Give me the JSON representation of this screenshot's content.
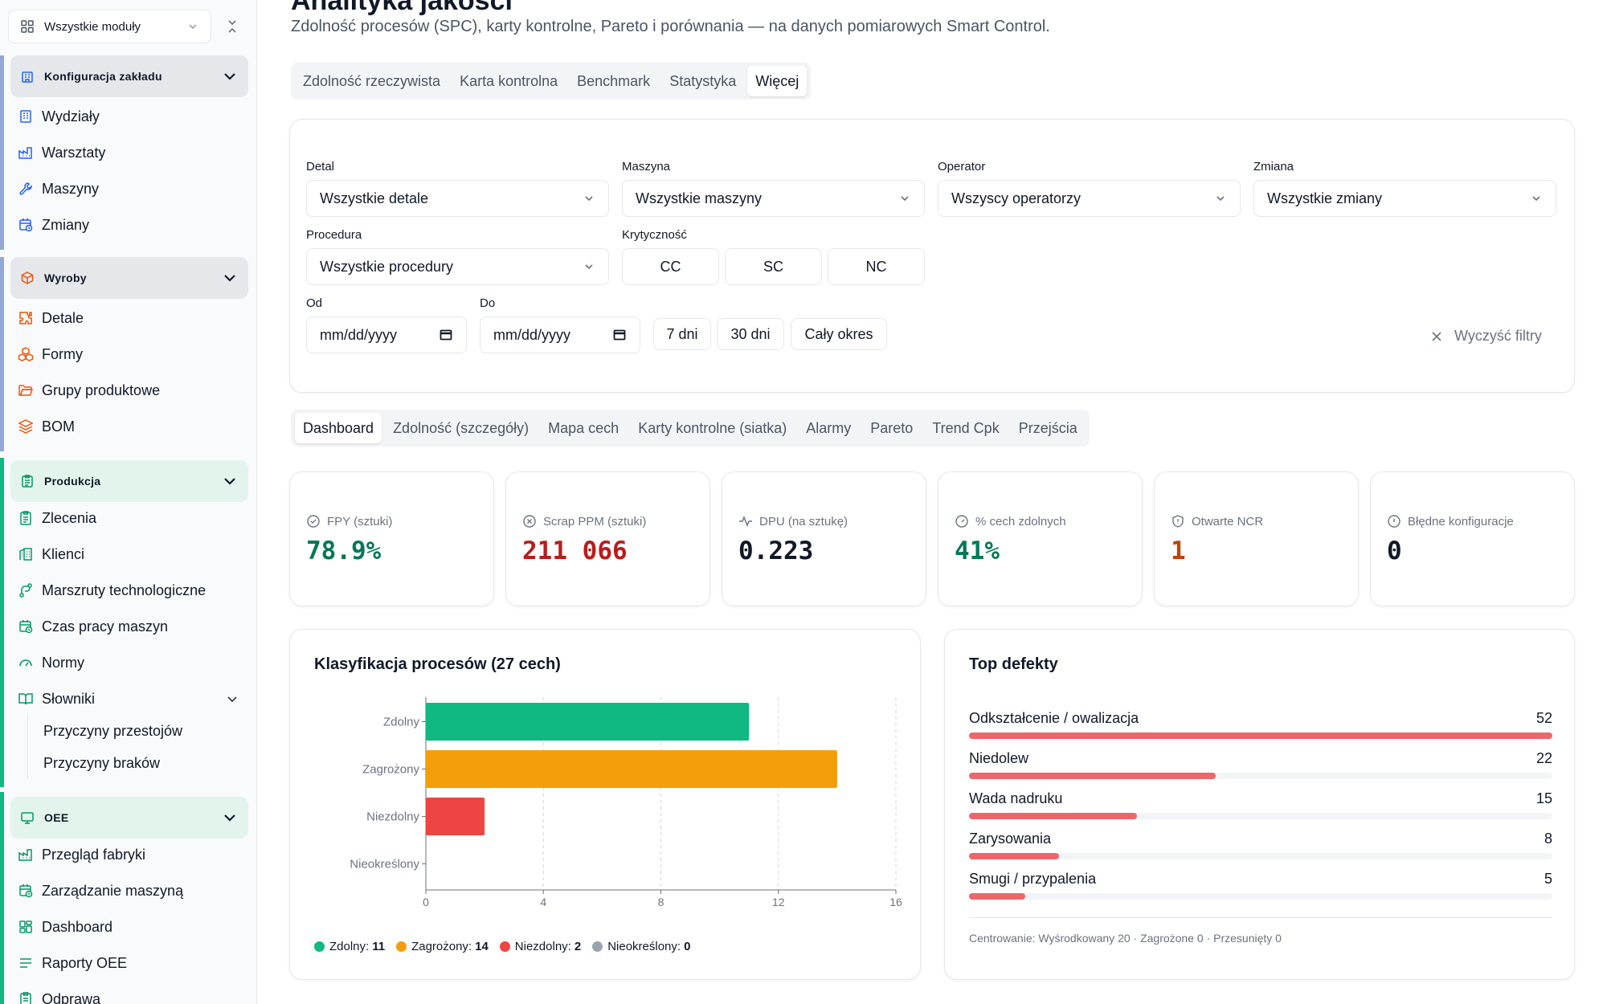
{
  "sidebar": {
    "module_select": "Wszystkie moduły",
    "groups": [
      {
        "label": "Konfiguracja zakładu",
        "items": [
          "Wydziały",
          "Warsztaty",
          "Maszyny",
          "Zmiany"
        ]
      },
      {
        "label": "Wyroby",
        "items": [
          "Detale",
          "Formy",
          "Grupy produktowe",
          "BOM"
        ]
      },
      {
        "label": "Produkcja",
        "items": [
          "Zlecenia",
          "Klienci",
          "Marszruty technologiczne",
          "Czas pracy maszyn",
          "Normy",
          "Słowniki"
        ],
        "subitems": [
          "Przyczyny przestojów",
          "Przyczyny braków"
        ]
      },
      {
        "label": "OEE",
        "items": [
          "Przegląd fabryki",
          "Zarządzanie maszyną",
          "Dashboard",
          "Raporty OEE",
          "Odprawa"
        ]
      }
    ]
  },
  "header": {
    "title": "Analityka jakości",
    "subtitle": "Zdolność procesów (SPC), karty kontrolne, Pareto i porównania — na danych pomiarowych Smart Control."
  },
  "top_tabs": [
    "Zdolność rzeczywista",
    "Karta kontrolna",
    "Benchmark",
    "Statystyka",
    "Więcej"
  ],
  "top_tabs_active": "Więcej",
  "filters": {
    "detal_label": "Detal",
    "detal_value": "Wszystkie detale",
    "maszyna_label": "Maszyna",
    "maszyna_value": "Wszystkie maszyny",
    "operator_label": "Operator",
    "operator_value": "Wszyscy operatorzy",
    "zmiana_label": "Zmiana",
    "zmiana_value": "Wszystkie zmiany",
    "procedura_label": "Procedura",
    "procedura_value": "Wszystkie procedury",
    "krytycznosc_label": "Krytyczność",
    "krytycznosc_options": [
      "CC",
      "SC",
      "NC"
    ],
    "od_label": "Od",
    "od_value": "mm/dd/yyyy",
    "do_label": "Do",
    "do_value": "mm/dd/yyyy",
    "ranges": [
      "7 dni",
      "30 dni",
      "Cały okres"
    ],
    "clear_label": "Wyczyść filtry"
  },
  "sub_tabs": [
    "Dashboard",
    "Zdolność (szczegóły)",
    "Mapa cech",
    "Karty kontrolne (siatka)",
    "Alarmy",
    "Pareto",
    "Trend Cpk",
    "Przejścia"
  ],
  "sub_tabs_active": "Dashboard",
  "kpis": [
    {
      "label": "FPY (sztuki)",
      "value": "78.9%",
      "color": "#047857",
      "icon": "check-circle-icon"
    },
    {
      "label": "Scrap PPM (sztuki)",
      "value": "211 066",
      "color": "#b91c1c",
      "icon": "x-circle-icon"
    },
    {
      "label": "DPU (na sztukę)",
      "value": "0.223",
      "color": "#111827",
      "icon": "activity-icon"
    },
    {
      "label": "% cech zdolnych",
      "value": "41%",
      "color": "#047857",
      "icon": "gauge-icon"
    },
    {
      "label": "Otwarte NCR",
      "value": "1",
      "color": "#c2410c",
      "icon": "shield-icon"
    },
    {
      "label": "Błędne konfiguracje",
      "value": "0",
      "color": "#111827",
      "icon": "alert-circle-icon"
    }
  ],
  "chart_data": {
    "type": "bar",
    "orientation": "horizontal",
    "title": "Klasyfikacja procesów (27 cech)",
    "categories": [
      "Zdolny",
      "Zagrożony",
      "Niezdolny",
      "Nieokreślony"
    ],
    "values": [
      11,
      14,
      2,
      0
    ],
    "colors": [
      "#10b981",
      "#f59e0b",
      "#ef4444",
      "#9ca3af"
    ],
    "xlim": [
      0,
      16
    ],
    "xticks": [
      0,
      4,
      8,
      12,
      16
    ],
    "grid": true,
    "legend_position": "bottom-left",
    "legend": [
      {
        "label": "Zdolny:",
        "count": "11",
        "color": "#10b981"
      },
      {
        "label": "Zagrożony:",
        "count": "14",
        "color": "#f59e0b"
      },
      {
        "label": "Niezdolny:",
        "count": "2",
        "color": "#ef4444"
      },
      {
        "label": "Nieokreślony:",
        "count": "0",
        "color": "#9ca3af"
      }
    ]
  },
  "top_defects": {
    "title": "Top defekty",
    "items": [
      {
        "name": "Odkształcenie / owalizacja",
        "count": 52
      },
      {
        "name": "Niedolew",
        "count": 22
      },
      {
        "name": "Wada nadruku",
        "count": 15
      },
      {
        "name": "Zarysowania",
        "count": 8
      },
      {
        "name": "Smugi / przypalenia",
        "count": 5
      }
    ],
    "max": 52,
    "footer": "Centrowanie: Wyśrodkowany 20 · Zagrożone 0 · Przesunięty 0"
  },
  "colors": {
    "accent_green": "#10b981",
    "accent_blue_bar": "#93a8d8",
    "defect_bar": "#f0646c"
  }
}
